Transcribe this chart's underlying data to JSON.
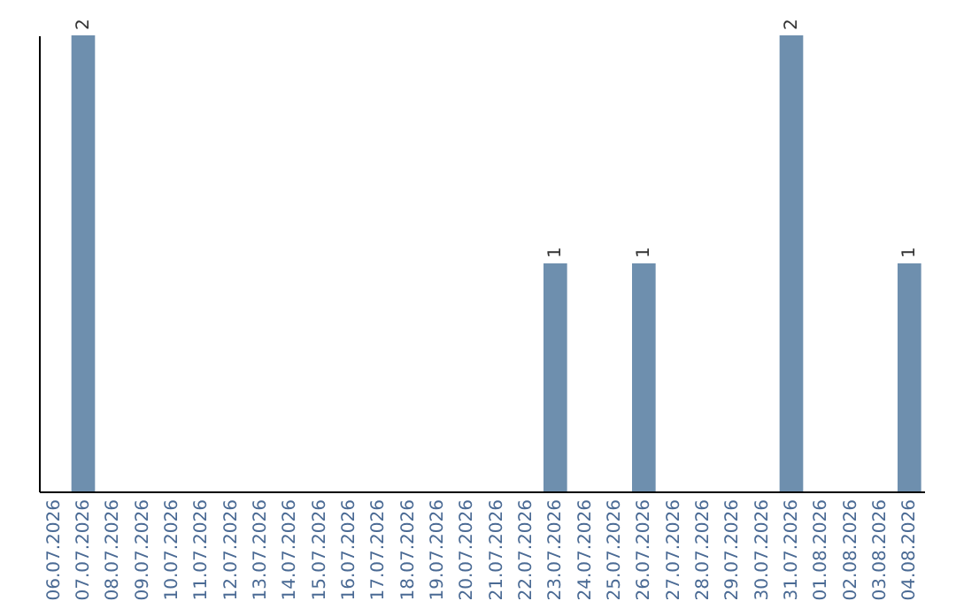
{
  "chart_data": {
    "type": "bar",
    "categories": [
      "06.07.2026",
      "07.07.2026",
      "08.07.2026",
      "09.07.2026",
      "10.07.2026",
      "11.07.2026",
      "12.07.2026",
      "13.07.2026",
      "14.07.2026",
      "15.07.2026",
      "16.07.2026",
      "17.07.2026",
      "18.07.2026",
      "19.07.2026",
      "20.07.2026",
      "21.07.2026",
      "22.07.2026",
      "23.07.2026",
      "24.07.2026",
      "25.07.2026",
      "26.07.2026",
      "27.07.2026",
      "28.07.2026",
      "29.07.2026",
      "30.07.2026",
      "31.07.2026",
      "01.08.2026",
      "02.08.2026",
      "03.08.2026",
      "04.08.2026"
    ],
    "values": [
      0,
      2,
      0,
      0,
      0,
      0,
      0,
      0,
      0,
      0,
      0,
      0,
      0,
      0,
      0,
      0,
      0,
      1,
      0,
      0,
      1,
      0,
      0,
      0,
      0,
      2,
      0,
      0,
      0,
      1
    ],
    "value_labels": [
      null,
      "2",
      null,
      null,
      null,
      null,
      null,
      null,
      null,
      null,
      null,
      null,
      null,
      null,
      null,
      null,
      null,
      "1",
      null,
      null,
      "1",
      null,
      null,
      null,
      null,
      "2",
      null,
      null,
      null,
      "1"
    ],
    "color": "#6e8fae",
    "ylim": [
      0,
      2
    ],
    "tick_labels": "x",
    "grid": false
  }
}
